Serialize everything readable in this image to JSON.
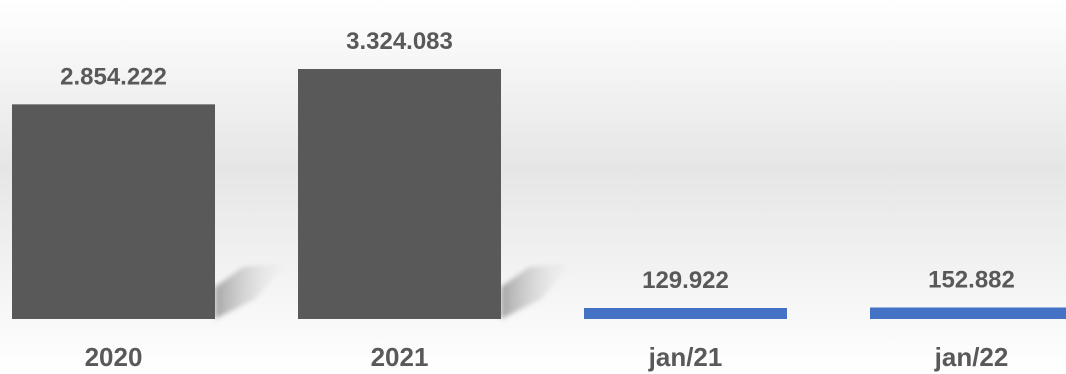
{
  "chart_data": {
    "type": "bar",
    "categories": [
      "2020",
      "2021",
      "jan/21",
      "jan/22"
    ],
    "values": [
      2854222,
      3324083,
      129922,
      152882
    ],
    "value_labels": [
      "2.854.222",
      "3.324.083",
      "129.922",
      "152.882"
    ],
    "title": "",
    "xlabel": "",
    "ylabel": "",
    "grid": false,
    "legend": "none",
    "colors": [
      "#595959",
      "#595959",
      "#4472C4",
      "#4472C4"
    ],
    "label_color": "#595959"
  }
}
